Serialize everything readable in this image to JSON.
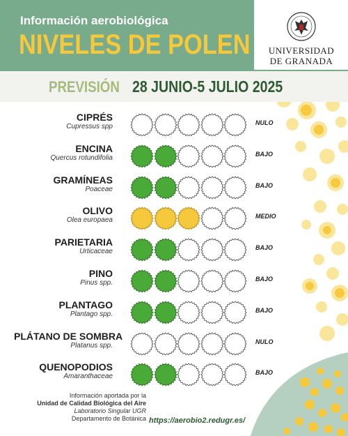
{
  "header": {
    "subtitle": "Información aerobiológica",
    "title": "NIVELES DE POLEN"
  },
  "logo": {
    "line1": "UNIVERSIDAD",
    "line2": "DE GRANADA"
  },
  "forecast": {
    "label": "PREVISIÓN",
    "dates": "28 JUNIO-5 JULIO 2025"
  },
  "legend_colors": {
    "bajo": "#4aaa37",
    "medio": "#f6c83c",
    "nulo": "#ffffff"
  },
  "pollen": [
    {
      "name": "CIPRÉS",
      "latin": "Cupressus spp",
      "level": "NULO",
      "filled": 0,
      "color": "#4aaa37"
    },
    {
      "name": "ENCINA",
      "latin": "Quercus rotundifolia",
      "level": "BAJO",
      "filled": 2,
      "color": "#4aaa37"
    },
    {
      "name": "GRAMÍNEAS",
      "latin": "Poaceae",
      "level": "BAJO",
      "filled": 2,
      "color": "#4aaa37"
    },
    {
      "name": "OLIVO",
      "latin": "Olea europaea",
      "level": "MEDIO",
      "filled": 3,
      "color": "#f6c83c"
    },
    {
      "name": "PARIETARIA",
      "latin": "Urticaceae",
      "level": "BAJO",
      "filled": 2,
      "color": "#4aaa37"
    },
    {
      "name": "PINO",
      "latin": "Pinus spp.",
      "level": "BAJO",
      "filled": 2,
      "color": "#4aaa37"
    },
    {
      "name": "PLANTAGO",
      "latin": "Plantago spp.",
      "level": "BAJO",
      "filled": 2,
      "color": "#4aaa37"
    },
    {
      "name": "PLÁTANO DE SOMBRA",
      "latin": "Platanus spp.",
      "level": "NULO",
      "filled": 0,
      "color": "#4aaa37"
    },
    {
      "name": "QUENOPODIOS",
      "latin": "Amaranthaceae",
      "level": "BAJO",
      "filled": 2,
      "color": "#4aaa37"
    }
  ],
  "footer": {
    "line1": "Información aportada por la",
    "line2": "Unidad de Calidad Biológica del Aire",
    "line3": "Laboratorio Singular UGR",
    "line4": "Departamento de Botánica",
    "url": "https://aerobio2.redugr.es/"
  }
}
